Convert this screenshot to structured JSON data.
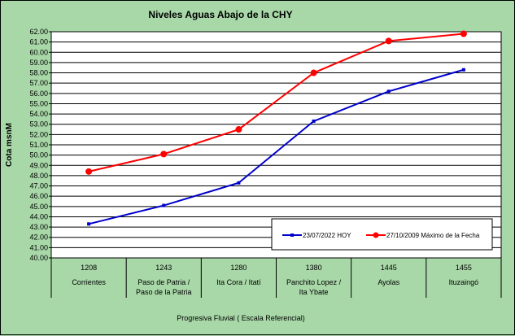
{
  "chart_data": {
    "type": "line",
    "title": "Niveles Aguas Abajo de la CHY",
    "ylabel": "Cota msnM",
    "xlabel": "Progresiva Fluvial ( Escala Referencial)",
    "ylim": [
      40.0,
      62.0
    ],
    "ystep": 1.0,
    "grid": true,
    "legend_position": "bottom-right",
    "categories": [
      {
        "code": "1208",
        "name": [
          "Corrientes"
        ]
      },
      {
        "code": "1243",
        "name": [
          "Paso de Patria /",
          "Paso de la Patria"
        ]
      },
      {
        "code": "1280",
        "name": [
          "Ita Cora / Itatí"
        ]
      },
      {
        "code": "1380",
        "name": [
          "Panchito Lopez /",
          "Ita Ybate"
        ]
      },
      {
        "code": "1445",
        "name": [
          "Ayolas"
        ]
      },
      {
        "code": "1455",
        "name": [
          "Ituzaingó"
        ]
      }
    ],
    "series": [
      {
        "name": "23/07/2022  HOY",
        "color": "#0000cc",
        "marker": "square",
        "values": [
          43.3,
          45.1,
          47.3,
          53.3,
          56.2,
          58.3
        ]
      },
      {
        "name": "27/10/2009 Máximo de la Fecha",
        "color": "#ff0000",
        "marker": "circle",
        "values": [
          48.4,
          50.1,
          52.5,
          58.0,
          61.1,
          61.8
        ]
      }
    ]
  }
}
